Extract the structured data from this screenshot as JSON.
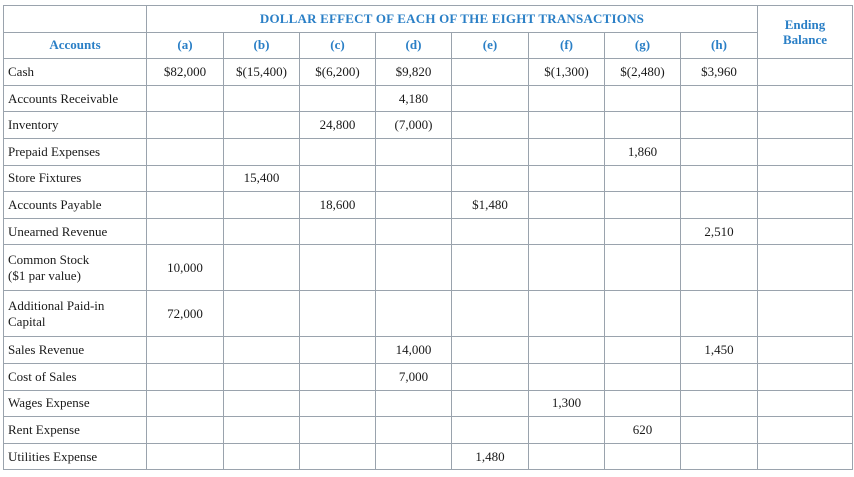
{
  "header": {
    "banner": "DOLLAR EFFECT OF EACH OF THE EIGHT TRANSACTIONS",
    "accounts_label": "Accounts",
    "ending_line1": "Ending",
    "ending_line2": "Balance",
    "columns": [
      "(a)",
      "(b)",
      "(c)",
      "(d)",
      "(e)",
      "(f)",
      "(g)",
      "(h)"
    ]
  },
  "rows": [
    {
      "account": "Cash",
      "values": [
        "$82,000",
        "$(15,400)",
        "$(6,200)",
        "$9,820",
        "",
        "$(1,300)",
        "$(2,480)",
        "$3,960"
      ],
      "ending": ""
    },
    {
      "account": "Accounts Receivable",
      "values": [
        "",
        "",
        "",
        "4,180",
        "",
        "",
        "",
        ""
      ],
      "ending": ""
    },
    {
      "account": "Inventory",
      "values": [
        "",
        "",
        "24,800",
        "(7,000)",
        "",
        "",
        "",
        ""
      ],
      "ending": ""
    },
    {
      "account": "Prepaid Expenses",
      "values": [
        "",
        "",
        "",
        "",
        "",
        "",
        "1,860",
        ""
      ],
      "ending": ""
    },
    {
      "account": "Store Fixtures",
      "values": [
        "",
        "15,400",
        "",
        "",
        "",
        "",
        "",
        ""
      ],
      "ending": ""
    },
    {
      "account": "Accounts Payable",
      "values": [
        "",
        "",
        "18,600",
        "",
        "$1,480",
        "",
        "",
        ""
      ],
      "ending": ""
    },
    {
      "account": "Unearned Revenue",
      "values": [
        "",
        "",
        "",
        "",
        "",
        "",
        "",
        "2,510"
      ],
      "ending": ""
    },
    {
      "account_line1": "Common Stock",
      "account_line2": "($1 par value)",
      "values": [
        "10,000",
        "",
        "",
        "",
        "",
        "",
        "",
        ""
      ],
      "ending": ""
    },
    {
      "account_line1": "Additional Paid-in",
      "account_line2": "Capital",
      "values": [
        "72,000",
        "",
        "",
        "",
        "",
        "",
        "",
        ""
      ],
      "ending": ""
    },
    {
      "account": "Sales Revenue",
      "values": [
        "",
        "",
        "",
        "14,000",
        "",
        "",
        "",
        "1,450"
      ],
      "ending": ""
    },
    {
      "account": "Cost of Sales",
      "values": [
        "",
        "",
        "",
        "7,000",
        "",
        "",
        "",
        ""
      ],
      "ending": ""
    },
    {
      "account": "Wages Expense",
      "values": [
        "",
        "",
        "",
        "",
        "",
        "1,300",
        "",
        ""
      ],
      "ending": ""
    },
    {
      "account": "Rent Expense",
      "values": [
        "",
        "",
        "",
        "",
        "",
        "",
        "620",
        ""
      ],
      "ending": ""
    },
    {
      "account": "Utilities Expense",
      "values": [
        "",
        "",
        "",
        "",
        "1,480",
        "",
        "",
        ""
      ],
      "ending": ""
    }
  ]
}
